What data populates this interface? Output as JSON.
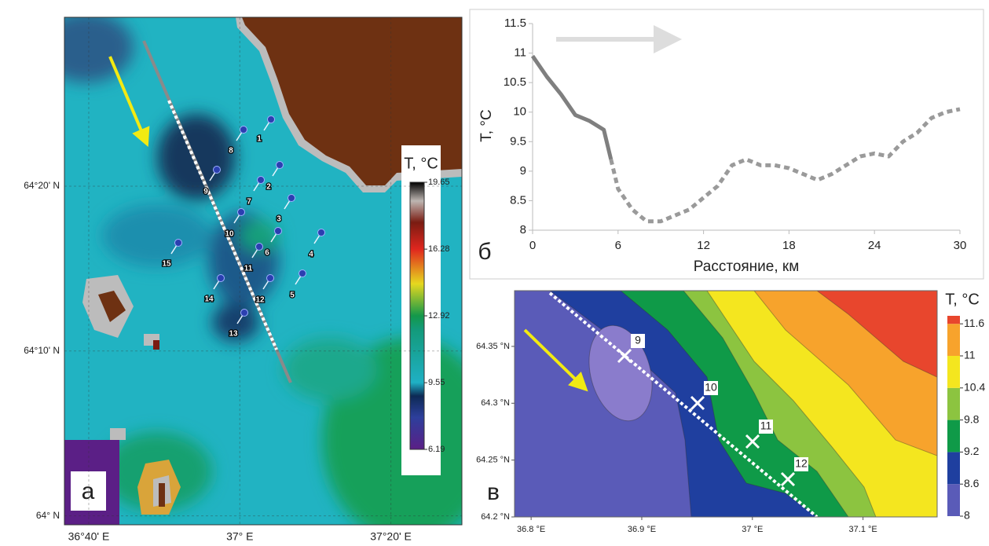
{
  "chart_data": [
    {
      "type": "map",
      "panel_label": "а",
      "xlim": [
        36.613,
        37.49
      ],
      "ylim": [
        63.991,
        64.504
      ],
      "xticks": [
        {
          "value": 36.6667,
          "label": "36°40' E"
        },
        {
          "value": 37,
          "label": "37° E"
        },
        {
          "value": 37.3333,
          "label": "37°20' E"
        }
      ],
      "yticks": [
        {
          "value": 64,
          "label": "64° N"
        },
        {
          "value": 64.1667,
          "label": "64°10' N"
        },
        {
          "value": 64.3333,
          "label": "64°20' N"
        }
      ],
      "colorbar": {
        "title": "T, °C",
        "clim": [
          6.19,
          19.65
        ],
        "ticks": [
          6.19,
          9.55,
          12.92,
          16.28,
          19.65
        ]
      },
      "stations": [
        "1",
        "2",
        "3",
        "4",
        "5",
        "6",
        "7",
        "8",
        "9",
        "10",
        "11",
        "12",
        "13",
        "14",
        "15"
      ]
    },
    {
      "type": "line",
      "panel_label": "б",
      "x_label": "Расстояние, км",
      "y_label": "T, °C",
      "x": [
        0,
        1,
        2,
        3,
        4,
        5,
        5.5,
        6,
        7,
        8,
        9,
        10,
        11,
        12,
        13,
        14,
        15,
        16,
        17,
        18,
        19,
        20,
        21,
        22,
        23,
        24,
        25,
        26,
        27,
        28,
        29,
        30
      ],
      "series": [
        {
          "color": "#7f7f7f",
          "values": [
            10.95,
            10.6,
            10.3,
            9.95,
            9.85,
            9.7,
            9.2,
            null,
            null,
            null,
            null,
            null,
            null,
            null,
            null,
            null,
            null,
            null,
            null,
            null,
            null,
            null,
            null,
            null,
            null,
            null,
            null,
            null,
            null,
            null,
            null,
            null
          ]
        },
        {
          "color": "#9a9a9a",
          "dash": true,
          "values": [
            null,
            null,
            null,
            null,
            null,
            null,
            9.2,
            8.7,
            8.35,
            8.15,
            8.15,
            8.25,
            8.35,
            8.55,
            8.75,
            9.1,
            9.2,
            9.1,
            9.1,
            9.05,
            8.95,
            8.85,
            8.95,
            9.1,
            9.25,
            9.3,
            9.25,
            9.5,
            9.65,
            9.9,
            10.0,
            10.05
          ]
        }
      ],
      "xlim": [
        0,
        30
      ],
      "xticks": [
        0,
        6,
        12,
        18,
        24,
        30
      ],
      "ylim": [
        8,
        11.5
      ],
      "yticks": [
        8,
        8.5,
        9,
        9.5,
        10,
        10.5,
        11,
        11.5
      ]
    },
    {
      "type": "contour",
      "panel_label": "в",
      "xlim": [
        36.785,
        37.167
      ],
      "ylim": [
        64.2,
        64.399
      ],
      "xticks": [
        {
          "value": 36.8,
          "label": "36.8 °E"
        },
        {
          "value": 36.9,
          "label": "36.9 °E"
        },
        {
          "value": 37,
          "label": "37 °E"
        },
        {
          "value": 37.1,
          "label": "37.1 °E"
        }
      ],
      "yticks": [
        {
          "value": 64.2,
          "label": "64.2 °N"
        },
        {
          "value": 64.25,
          "label": "64.25 °N"
        },
        {
          "value": 64.3,
          "label": "64.3 °N"
        },
        {
          "value": 64.35,
          "label": "64.35 °N"
        }
      ],
      "colorbar": {
        "title": "T, °C",
        "clim": [
          8,
          11.75
        ],
        "ticks": [
          8,
          8.6,
          9.2,
          9.8,
          10.4,
          11,
          11.6
        ],
        "colors": [
          "#5a5bb8",
          "#1f3f9f",
          "#0f9a48",
          "#8cc440",
          "#f4e61f",
          "#f7a32c",
          "#e8462d"
        ]
      },
      "stations": [
        "9",
        "10",
        "11",
        "12"
      ]
    }
  ]
}
